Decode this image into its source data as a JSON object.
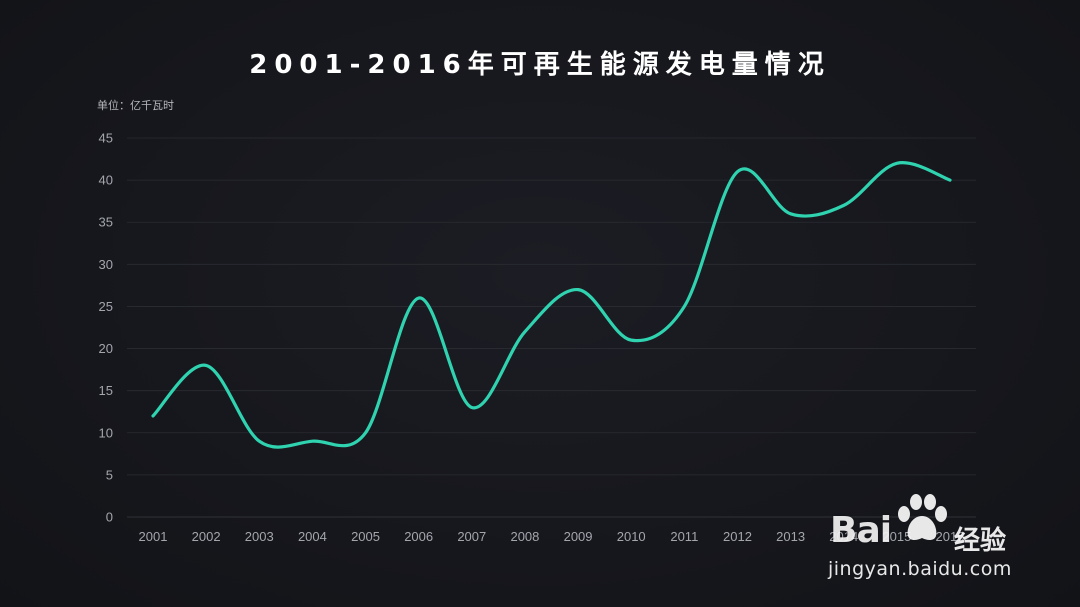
{
  "header": {
    "title": "2001-2016年可再生能源发电量情况",
    "unit_label": "单位：亿千瓦时"
  },
  "colors": {
    "background": "#16171d",
    "line": "#2fd3b0",
    "grid": "#2a2c33",
    "tick_text": "#a3a6ad"
  },
  "chart_data": {
    "type": "line",
    "title": "2001-2016年可再生能源发电量情况",
    "xlabel": "",
    "ylabel": "单位：亿千瓦时",
    "categories": [
      "2001",
      "2002",
      "2003",
      "2004",
      "2005",
      "2006",
      "2007",
      "2008",
      "2009",
      "2010",
      "2011",
      "2012",
      "2013",
      "2014",
      "2015",
      "2016"
    ],
    "series": [
      {
        "values": [
          12,
          18,
          9,
          9,
          10,
          26,
          13,
          22,
          27,
          21,
          25,
          41,
          36,
          37,
          42,
          40
        ]
      }
    ],
    "yticks": [
      "0",
      "5",
      "10",
      "15",
      "20",
      "25",
      "30",
      "35",
      "40",
      "45"
    ],
    "ylim": [
      0,
      45
    ],
    "grid": true,
    "smooth": true,
    "legend": "none"
  },
  "watermark": {
    "brand": "Bai",
    "brand_tail": "经验",
    "url": "jingyan.baidu.com",
    "icon": "paw-icon"
  }
}
